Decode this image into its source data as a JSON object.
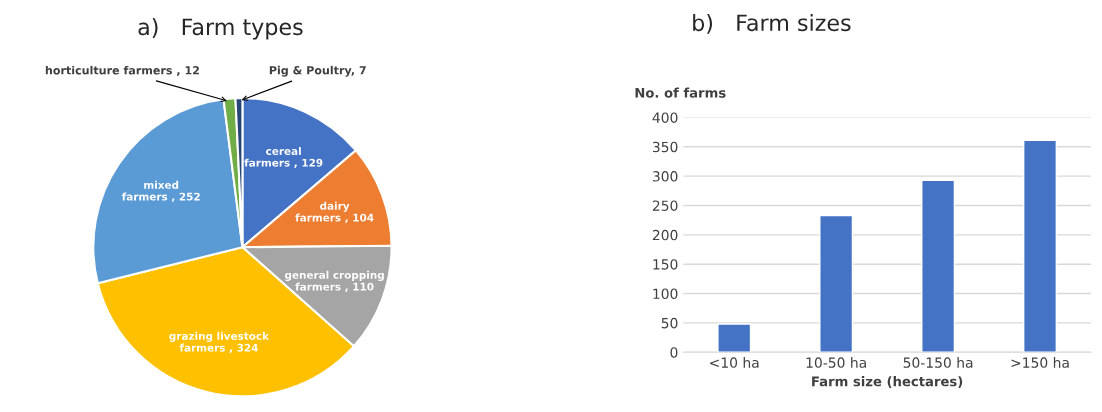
{
  "chart_data": [
    {
      "type": "pie",
      "title": "a)   Farm types",
      "categories": [
        "cereal farmers , 129",
        "dairy farmers , 104",
        "general cropping farmers , 110",
        "grazing livestock farmers , 324",
        "mixed farmers , 252",
        "horticulture farmers , 12",
        "Pig & Poultry, 7"
      ],
      "values": [
        129,
        104,
        110,
        324,
        252,
        12,
        7
      ],
      "colors": [
        "#4472c4",
        "#ed7d31",
        "#a5a5a5",
        "#ffc000",
        "#5b9bd5",
        "#70ad47",
        "#264478"
      ]
    },
    {
      "type": "bar",
      "title": "b)   Farm sizes",
      "xlabel": "Farm size (hectares)",
      "ylabel": "No. of farms",
      "categories": [
        "<10 ha",
        "10-50 ha",
        "50-150 ha",
        ">150 ha"
      ],
      "values": [
        48,
        233,
        293,
        361
      ],
      "color": "#4472c4",
      "ylim": [
        0,
        400
      ],
      "yticks": [
        0,
        50,
        100,
        150,
        200,
        250,
        300,
        350,
        400
      ],
      "grid": "y"
    }
  ]
}
